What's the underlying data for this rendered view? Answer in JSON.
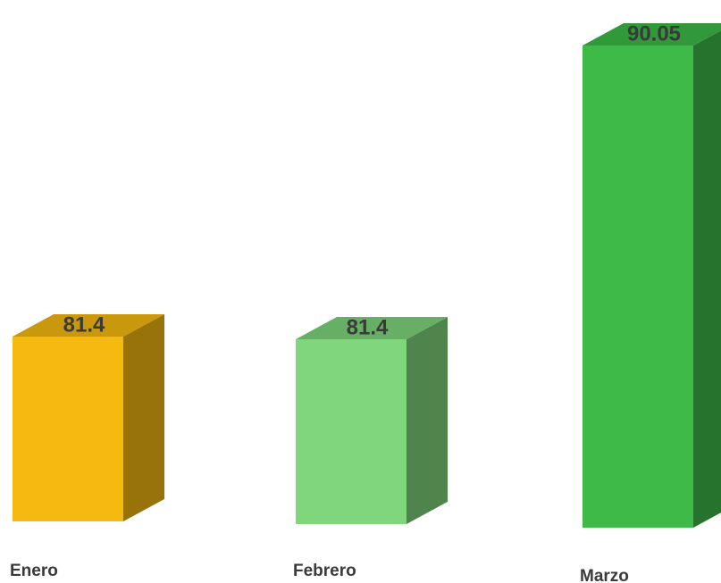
{
  "chart_data": {
    "type": "bar",
    "style": "3d-column",
    "categories": [
      "Enero",
      "Febrero",
      "Marzo"
    ],
    "values": [
      81.4,
      81.4,
      90.05
    ],
    "data_labels": [
      "81.4",
      "81.4",
      "90.05"
    ],
    "colors": [
      "#f5b90f",
      "#7fd67c",
      "#3dba48"
    ],
    "title": "",
    "xlabel": "",
    "ylabel": "",
    "grid": false,
    "legend": "none"
  }
}
